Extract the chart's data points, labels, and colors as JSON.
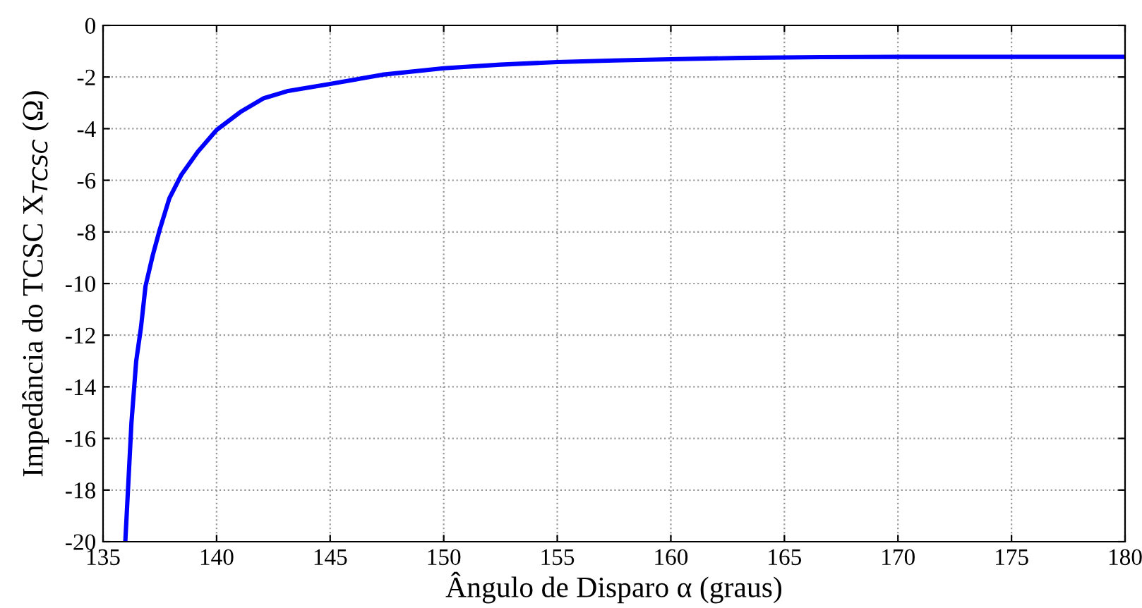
{
  "chart_data": {
    "type": "line",
    "xlabel": "Ângulo de Disparo α (graus)",
    "ylabel": "Impedância do TCSC X$_{TCSC}$ (Ω)",
    "x": [
      135.98,
      136.25,
      136.46,
      136.67,
      136.87,
      137.19,
      137.5,
      137.92,
      138.44,
      139.17,
      140,
      141.04,
      142.08,
      143.1,
      145,
      147.3,
      150,
      152.5,
      155,
      157.5,
      160,
      163,
      166.6,
      170,
      175,
      180
    ],
    "series": [
      {
        "color": "#0000ff",
        "values": [
          -20,
          -15.4,
          -13.0,
          -11.7,
          -10.1,
          -8.9,
          -7.9,
          -6.7,
          -5.8,
          -4.9,
          -4.05,
          -3.36,
          -2.82,
          -2.55,
          -2.27,
          -1.91,
          -1.66,
          -1.52,
          -1.42,
          -1.36,
          -1.31,
          -1.26,
          -1.23,
          -1.22,
          -1.22,
          -1.22
        ]
      }
    ],
    "xlim": [
      135,
      180
    ],
    "ylim": [
      -20,
      0
    ],
    "xticks": [
      135,
      140,
      145,
      150,
      155,
      160,
      165,
      170,
      175,
      180
    ],
    "yticks": [
      -20,
      -18,
      -16,
      -14,
      -12,
      -10,
      -8,
      -6,
      -4,
      -2,
      0
    ],
    "grid": true,
    "line_style": "solid",
    "marker": "none"
  }
}
